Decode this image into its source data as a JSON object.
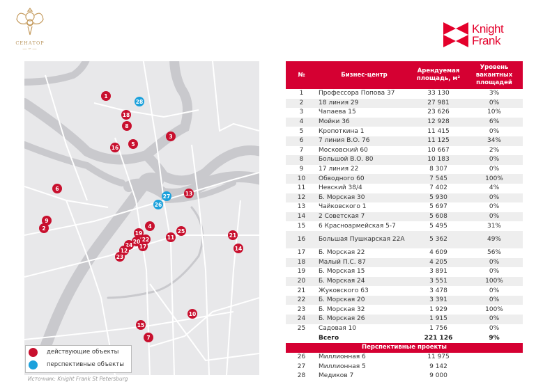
{
  "logos": {
    "left": "СЕНАТОР",
    "right_line1": "Knight",
    "right_line2": "Frank"
  },
  "colors": {
    "active": "#c8102e",
    "prospective": "#1ba1dc",
    "header": "#d50032"
  },
  "map": {
    "markers": [
      {
        "label": "1",
        "type": "active"
      },
      {
        "label": "28",
        "type": "prospective"
      },
      {
        "label": "18",
        "type": "active"
      },
      {
        "label": "8",
        "type": "active"
      },
      {
        "label": "3",
        "type": "active"
      },
      {
        "label": "5",
        "type": "active"
      },
      {
        "label": "16",
        "type": "active"
      },
      {
        "label": "6",
        "type": "active"
      },
      {
        "label": "13",
        "type": "active"
      },
      {
        "label": "27",
        "type": "prospective"
      },
      {
        "label": "26",
        "type": "prospective"
      },
      {
        "label": "9",
        "type": "active"
      },
      {
        "label": "2",
        "type": "active"
      },
      {
        "label": "4",
        "type": "active"
      },
      {
        "label": "19",
        "type": "active"
      },
      {
        "label": "25",
        "type": "active"
      },
      {
        "label": "11",
        "type": "active"
      },
      {
        "label": "21",
        "type": "active"
      },
      {
        "label": "22",
        "type": "active"
      },
      {
        "label": "20",
        "type": "active"
      },
      {
        "label": "24",
        "type": "active"
      },
      {
        "label": "17",
        "type": "active"
      },
      {
        "label": "14",
        "type": "active"
      },
      {
        "label": "12",
        "type": "active"
      },
      {
        "label": "23",
        "type": "active"
      },
      {
        "label": "10",
        "type": "active"
      },
      {
        "label": "15",
        "type": "active"
      },
      {
        "label": "7",
        "type": "active"
      }
    ],
    "legend": {
      "active": "действующие объекты",
      "prospective": "перспективные объекты"
    },
    "source": "Источник: Knight Frank St Petersburg"
  },
  "table": {
    "headers": {
      "num": "№",
      "name": "Бизнес-центр",
      "area": "Арендуемая площадь, м²",
      "vacancy": "Уровень вакантных площадей"
    },
    "rows": [
      [
        "1",
        "Профессора Попова  37",
        "33 130",
        "3%"
      ],
      [
        "2",
        "18 линия  29",
        "27 981",
        "0%"
      ],
      [
        "3",
        "Чапаева 15",
        "23 626",
        "10%"
      ],
      [
        "4",
        "Мойки 36",
        "12 928",
        "6%"
      ],
      [
        "5",
        "Кропоткина  1",
        "11 415",
        "0%"
      ],
      [
        "6",
        "7 линия В.О. 76",
        "11 125",
        "34%"
      ],
      [
        "7",
        "Московский  60",
        "10 667",
        "2%"
      ],
      [
        "8",
        "Большой В.О. 80",
        "10 183",
        "0%"
      ],
      [
        "9",
        "17 линия 22",
        "8 307",
        "0%"
      ],
      [
        "10",
        "Обводного 60",
        "7 545",
        "100%"
      ],
      [
        "11",
        "Невский  38/4",
        "7 402",
        "4%"
      ],
      [
        "12",
        "Б. Морская 30",
        "5 930",
        "0%"
      ],
      [
        "13",
        "Чайковского  1",
        "5 697",
        "0%"
      ],
      [
        "14",
        "2 Советская 7",
        "5 608",
        "0%"
      ],
      [
        "15",
        "6 Красноармейская 5-7",
        "5 495",
        "31%"
      ],
      [
        "16",
        "Большая Пушкарская 22А",
        "5 362",
        "49%"
      ],
      [
        "17",
        "Б. Морская 22",
        "4 609",
        "56%"
      ],
      [
        "18",
        "Малый П.С. 87",
        "4 205",
        "0%"
      ],
      [
        "19",
        "Б. Морская 15",
        "3 891",
        "0%"
      ],
      [
        "20",
        "Б. Морская 24",
        "3 551",
        "100%"
      ],
      [
        "21",
        "Жуковского  63",
        "3 478",
        "0%"
      ],
      [
        "22",
        "Б. Морская 20",
        "3 391",
        "0%"
      ],
      [
        "23",
        "Б. Морская 32",
        "1 929",
        "100%"
      ],
      [
        "24",
        "Б. Морская 26",
        "1 915",
        "0%"
      ],
      [
        "25",
        "Садовая 10",
        "1 756",
        "0%"
      ]
    ],
    "total": {
      "label": "Всего",
      "area": "221 126",
      "vacancy": "9%"
    },
    "prospective_header": "Перспективные проекты",
    "prospective_rows": [
      [
        "26",
        "Миллионная 6",
        "11 975",
        ""
      ],
      [
        "27",
        "Миллионная 5",
        "9 142",
        ""
      ],
      [
        "28",
        "Медиков 7",
        "9 000",
        ""
      ]
    ]
  }
}
